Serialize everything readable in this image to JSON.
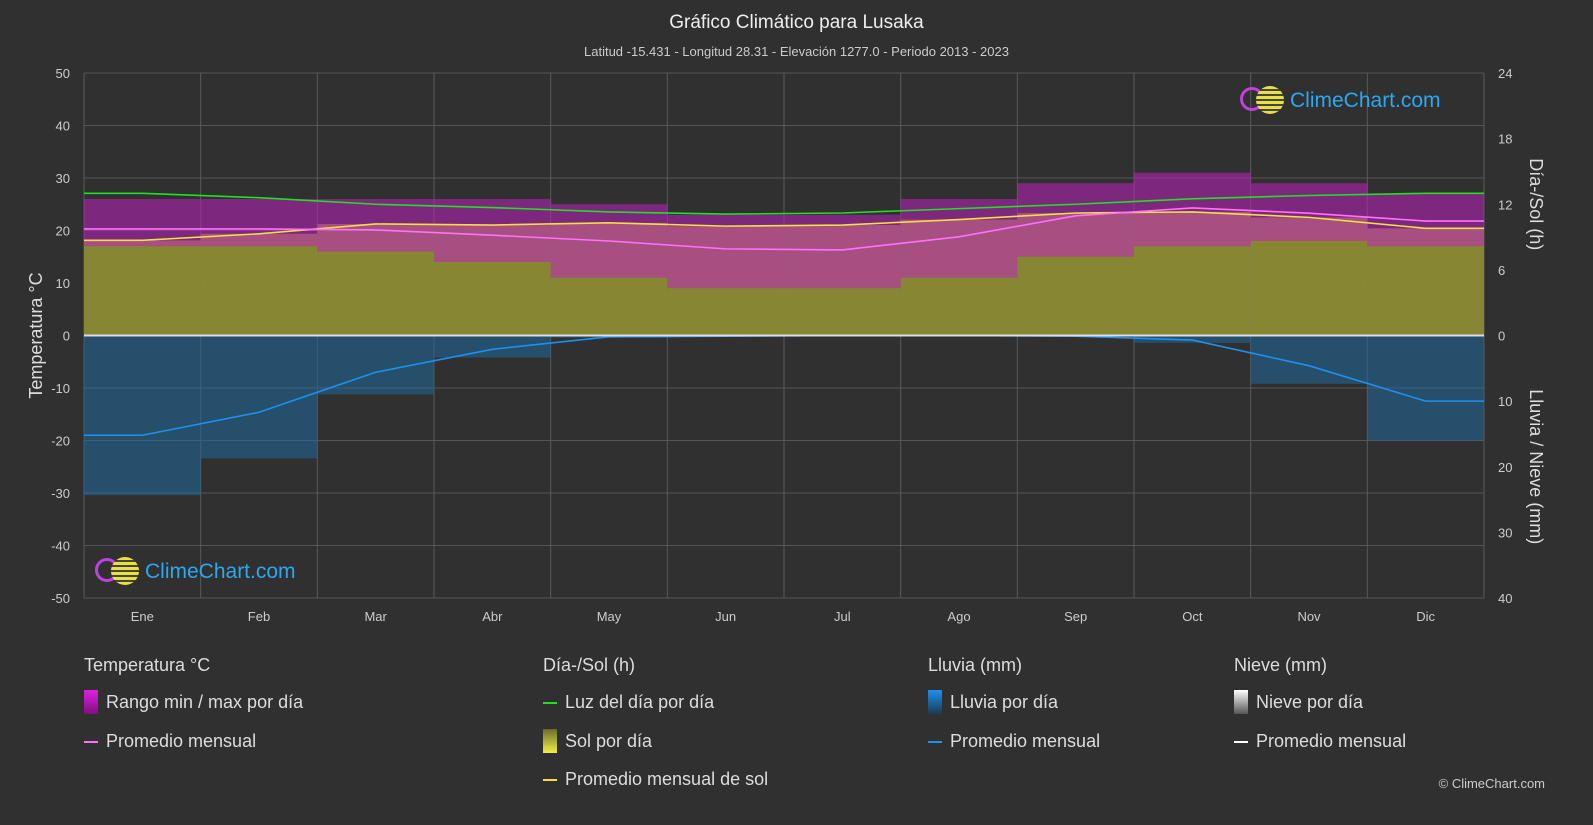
{
  "title": "Gráfico Climático para Lusaka",
  "subtitle": "Latitud -15.431 - Longitud 28.31 - Elevación 1277.0 - Periodo 2013 - 2023",
  "logo_text": "ClimeChart.com",
  "copyright": "© ClimeChart.com",
  "chart_data": {
    "type": "area",
    "categories": [
      "Ene",
      "Feb",
      "Mar",
      "Abr",
      "May",
      "Jun",
      "Jul",
      "Ago",
      "Sep",
      "Oct",
      "Nov",
      "Dic"
    ],
    "y_left": {
      "label": "Temperatura °C",
      "range": [
        -50,
        50
      ],
      "ticks": [
        50,
        40,
        30,
        20,
        10,
        0,
        -10,
        -20,
        -30,
        -40,
        -50
      ]
    },
    "y_right_top": {
      "label": "Día-/Sol (h)",
      "range": [
        0,
        24
      ],
      "ticks": [
        24,
        18,
        12,
        6,
        0
      ]
    },
    "y_right_bottom": {
      "label": "Lluvia / Nieve (mm)",
      "range": [
        0,
        40
      ],
      "ticks": [
        0,
        10,
        20,
        30,
        40
      ]
    },
    "grid": true,
    "series": [
      {
        "name": "Rango min / max por día",
        "type": "range",
        "color": "#c020c0",
        "max": [
          26,
          26,
          26,
          26,
          25,
          23,
          23,
          26,
          29,
          31,
          29,
          27
        ],
        "min": [
          17,
          17,
          16,
          14,
          11,
          9,
          9,
          11,
          15,
          17,
          18,
          17
        ]
      },
      {
        "name": "Promedio mensual",
        "group": "temperature",
        "color": "#ff70ff",
        "values": [
          20.3,
          20.3,
          20.1,
          19.1,
          18.0,
          16.5,
          16.3,
          18.8,
          22.8,
          24.3,
          23.3,
          21.8
        ]
      },
      {
        "name": "Luz del día por día",
        "color": "#20e020",
        "values": [
          13.0,
          12.6,
          12.0,
          11.7,
          11.3,
          11.1,
          11.2,
          11.6,
          12.0,
          12.5,
          12.8,
          13.0
        ]
      },
      {
        "name": "Sol por día",
        "type": "area",
        "color": "#8c8c34",
        "values": [
          8.7,
          9.3,
          10.2,
          10.1,
          10.3,
          10.0,
          10.1,
          10.6,
          11.2,
          11.3,
          10.8,
          9.8
        ]
      },
      {
        "name": "Promedio mensual de sol",
        "color": "#f0e040",
        "values": [
          8.7,
          9.3,
          10.2,
          10.1,
          10.3,
          10.0,
          10.1,
          10.6,
          11.2,
          11.3,
          10.8,
          9.8
        ]
      },
      {
        "name": "Lluvia por día",
        "type": "bar",
        "color": "#1e6a9c"
      },
      {
        "name": "Promedio mensual",
        "group": "rain",
        "color": "#2090f0",
        "values": [
          15.2,
          11.7,
          5.6,
          2.1,
          0.2,
          0.1,
          0.0,
          0.0,
          0.1,
          0.7,
          4.6,
          10.0
        ]
      },
      {
        "name": "Nieve por día",
        "type": "bar",
        "color": "#dddddd"
      },
      {
        "name": "Promedio mensual",
        "group": "snow",
        "color": "#ffffff",
        "values": [
          0,
          0,
          0,
          0,
          0,
          0,
          0,
          0,
          0,
          0,
          0,
          0
        ]
      }
    ]
  },
  "legend": {
    "temp": {
      "head": "Temperatura °C",
      "items": [
        "Rango min / max por día",
        "Promedio mensual"
      ]
    },
    "sun": {
      "head": "Día-/Sol (h)",
      "items": [
        "Luz del día por día",
        "Sol por día",
        "Promedio mensual de sol"
      ]
    },
    "rain": {
      "head": "Lluvia (mm)",
      "items": [
        "Lluvia por día",
        "Promedio mensual"
      ]
    },
    "snow": {
      "head": "Nieve (mm)",
      "items": [
        "Nieve por día",
        "Promedio mensual"
      ]
    }
  }
}
